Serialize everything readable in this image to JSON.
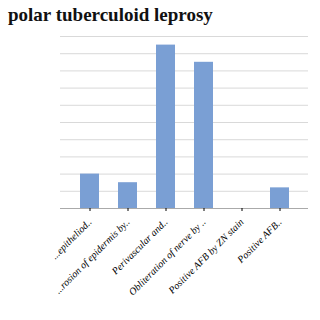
{
  "chart_data": {
    "type": "bar",
    "title": "polar tuberculoid leprosy",
    "categories": [
      "...epitheliod..",
      "...rosion of epidermis by..",
      "Perivascular and..",
      "Obliteration of nerve by ..",
      "Positive AFB by ZN stain",
      "Positive AFB.."
    ],
    "values": [
      20,
      15,
      95,
      85,
      0,
      12
    ],
    "color": "#7a9fd4",
    "ylim": [
      0,
      100
    ],
    "yticks": [
      0,
      10,
      20,
      30,
      40,
      50,
      60,
      70,
      80,
      90,
      100
    ],
    "grid": true,
    "tick_labels": "x"
  }
}
